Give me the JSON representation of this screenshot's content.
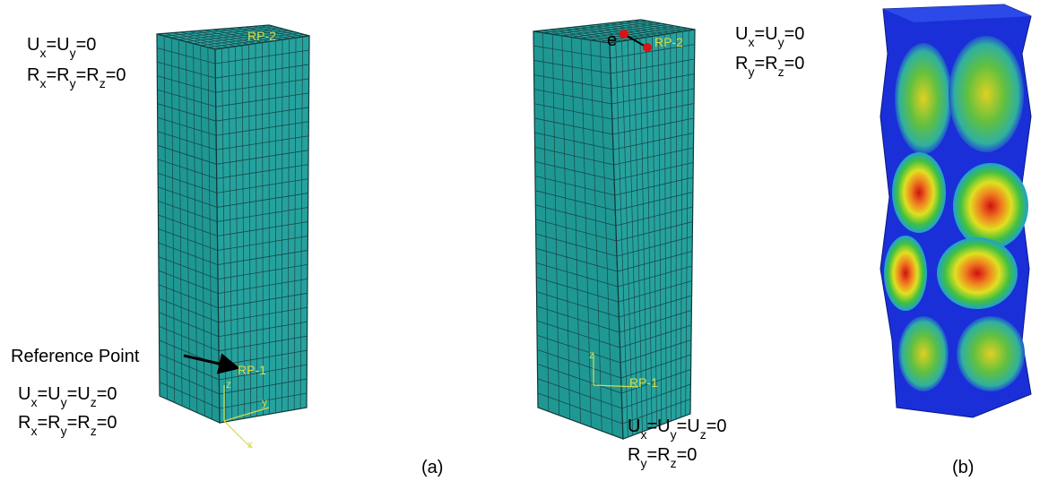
{
  "left_model": {
    "top_constraints": [
      [
        "U",
        "x",
        "=U",
        "y",
        "=0"
      ],
      [
        "R",
        "x",
        "=R",
        "y",
        "=R",
        "z",
        "=0"
      ]
    ],
    "rp_top": "RP-2",
    "rp_bottom": "RP-1",
    "reference_point_label": "Reference Point",
    "bottom_constraints": [
      [
        "U",
        "x",
        "=U",
        "y",
        "=U",
        "z",
        "=0"
      ],
      [
        "R",
        "x",
        "=R",
        "y",
        "=R",
        "z",
        "=0"
      ]
    ],
    "axis_labels": [
      "z",
      "y",
      "x"
    ]
  },
  "middle_model": {
    "eccentricity_label": "e",
    "rp_top": "RP-2",
    "rp_bottom": "RP-1",
    "top_constraints": [
      [
        "U",
        "x",
        "=U",
        "y",
        "=0"
      ],
      [
        "R",
        "y",
        "=R",
        "z",
        "=0"
      ]
    ],
    "bottom_constraints": [
      [
        "U",
        "x",
        "=U",
        "y",
        "=U",
        "z",
        "=0"
      ],
      [
        "R",
        "y",
        "=R",
        "z",
        "=0"
      ]
    ],
    "axis_labels": [
      "z"
    ]
  },
  "captions": [
    "(a)",
    "(b)"
  ]
}
